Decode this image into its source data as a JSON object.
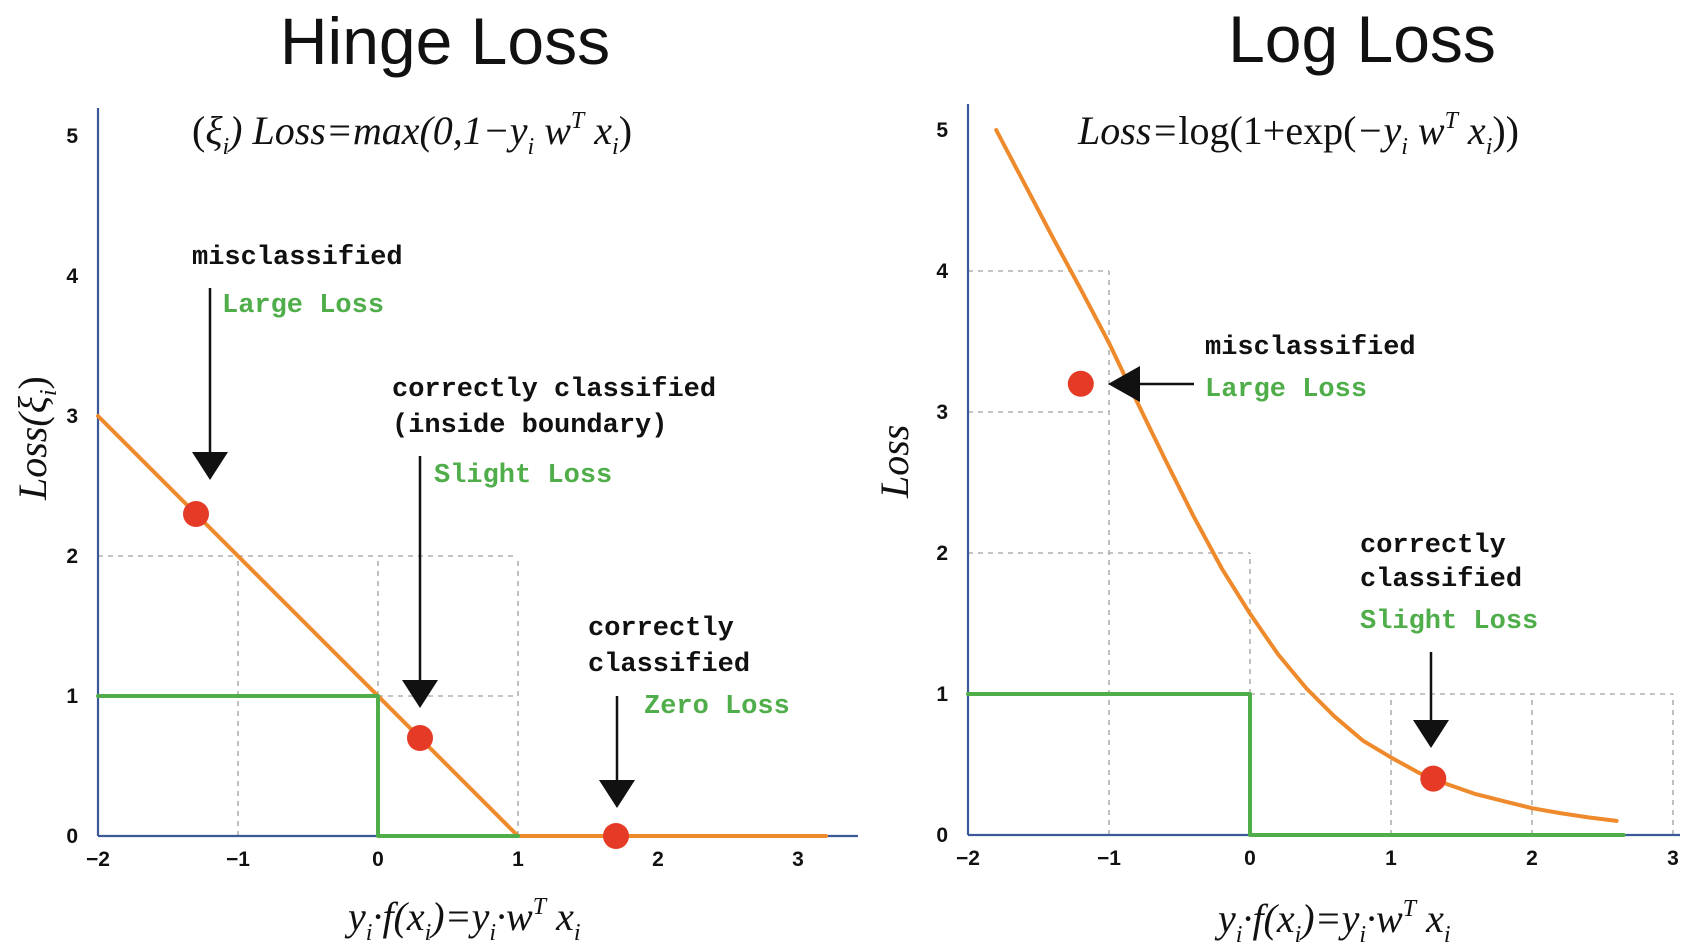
{
  "colors": {
    "loss_curve": "#ef8a2c",
    "zero_one": "#4fae4a",
    "axis": "#3b5998",
    "points": "#e53a26",
    "grid": "#b0b0b0",
    "annotation_green": "#4fae4a",
    "annotation_black": "#111111"
  },
  "chart_data": [
    {
      "type": "line",
      "title": "Hinge Loss",
      "formula": "(ξ_i) Loss=max(0,1−y_i w^T x_i)",
      "formula_parts": {
        "p1": "(",
        "p2": "ξ",
        "p3": "i",
        "p4": ") Loss=max(0,1−y",
        "p5": "i",
        "p6": " w",
        "p7": "T",
        "p8": " x",
        "p9": "i",
        "p10": ")"
      },
      "xlabel_parts": {
        "a": "y",
        "b": "i",
        "c": "·f(x",
        "d": "i",
        "e": ")=y",
        "f": "i",
        "g": "·w",
        "h": "T",
        "i": " x",
        "j": "i"
      },
      "ylabel_parts": {
        "a": "Loss(",
        "b": "ξ",
        "c": "i",
        "d": ")"
      },
      "xlim": [
        -2,
        3.2
      ],
      "ylim": [
        0,
        5
      ],
      "xticks": [
        -2,
        -1,
        0,
        1,
        2,
        3
      ],
      "xtick_labels": [
        "−2",
        "−1",
        "0",
        "1",
        "2",
        "3"
      ],
      "yticks": [
        0,
        1,
        2,
        3,
        4,
        5
      ],
      "ytick_labels": [
        "0",
        "1",
        "2",
        "3",
        "4",
        "5"
      ],
      "series": [
        {
          "x": [
            -2,
            1,
            3.2
          ],
          "y": [
            3,
            0,
            0
          ]
        },
        {
          "x": [
            -2,
            0,
            0,
            1
          ],
          "y": [
            1,
            1,
            0,
            0
          ]
        }
      ],
      "grid_guides": [
        {
          "x": [
            -2,
            1
          ],
          "y": [
            2,
            2
          ]
        },
        {
          "x": [
            -1,
            -1
          ],
          "y": [
            0,
            2
          ]
        },
        {
          "x": [
            0,
            0
          ],
          "y": [
            1,
            2
          ]
        },
        {
          "x": [
            1,
            1
          ],
          "y": [
            0,
            2
          ]
        },
        {
          "x": [
            0,
            1
          ],
          "y": [
            1,
            1
          ]
        }
      ],
      "points": [
        {
          "x": -1.3,
          "y": 2.3
        },
        {
          "x": 0.3,
          "y": 0.7
        },
        {
          "x": 1.7,
          "y": 0
        }
      ],
      "annotations": [
        {
          "lines": [
            "misclassified"
          ],
          "green": "Large Loss"
        },
        {
          "lines": [
            "correctly classified",
            "(inside boundary)"
          ],
          "green": "Slight Loss"
        },
        {
          "lines": [
            "correctly",
            "classified"
          ],
          "green": "Zero Loss"
        }
      ]
    },
    {
      "type": "line",
      "title": "Log Loss",
      "formula": "Loss=log(1+exp(−y_i w^T x_i))",
      "formula_parts": {
        "p1": "Loss=",
        "p2": "log(1+exp(",
        "p3": "−y",
        "p4": "i",
        "p5": " w",
        "p6": "T",
        "p7": " x",
        "p8": "i",
        "p9": "))"
      },
      "xlabel_parts": {
        "a": "y",
        "b": "i",
        "c": "·f(x",
        "d": "i",
        "e": ")=y",
        "f": "i",
        "g": "·w",
        "h": "T",
        "i": " x",
        "j": "i"
      },
      "ylabel": "Loss",
      "xlim": [
        -2,
        3.1
      ],
      "ylim": [
        0,
        5
      ],
      "xticks": [
        -2,
        -1,
        0,
        1,
        2,
        3
      ],
      "xtick_labels": [
        "−2",
        "−1",
        "0",
        "1",
        "2",
        "3"
      ],
      "yticks": [
        0,
        1,
        2,
        3,
        4,
        5
      ],
      "ytick_labels": [
        "0",
        "1",
        "2",
        "3",
        "4",
        "5"
      ],
      "series": [
        {
          "x": [
            -1.8,
            -1.6,
            -1.4,
            -1.2,
            -1.0,
            -0.8,
            -0.6,
            -0.4,
            -0.2,
            0.0,
            0.2,
            0.4,
            0.6,
            0.8,
            1.0,
            1.2,
            1.4,
            1.6,
            1.8,
            2.0,
            2.2,
            2.4,
            2.6
          ],
          "y": [
            5.0,
            4.62,
            4.24,
            3.87,
            3.49,
            3.07,
            2.66,
            2.26,
            1.89,
            1.57,
            1.28,
            1.04,
            0.84,
            0.67,
            0.55,
            0.44,
            0.36,
            0.29,
            0.24,
            0.19,
            0.155,
            0.125,
            0.1
          ]
        },
        {
          "x": [
            -2,
            0,
            0,
            2.65
          ],
          "y": [
            1,
            1,
            0,
            0
          ]
        }
      ],
      "grid_guides": [
        {
          "x": [
            -2,
            -1
          ],
          "y": [
            4,
            4
          ]
        },
        {
          "x": [
            -1,
            -1
          ],
          "y": [
            0,
            4
          ]
        },
        {
          "x": [
            -2,
            -1
          ],
          "y": [
            3,
            3
          ]
        },
        {
          "x": [
            -2,
            0
          ],
          "y": [
            2,
            2
          ]
        },
        {
          "x": [
            0,
            0
          ],
          "y": [
            1,
            2
          ]
        },
        {
          "x": [
            0,
            3
          ],
          "y": [
            1,
            1
          ]
        },
        {
          "x": [
            1,
            1
          ],
          "y": [
            0,
            1
          ]
        },
        {
          "x": [
            2,
            2
          ],
          "y": [
            0,
            1
          ]
        },
        {
          "x": [
            3,
            3
          ],
          "y": [
            0,
            1
          ]
        }
      ],
      "points": [
        {
          "x": -1.2,
          "y": 3.2
        },
        {
          "x": 1.3,
          "y": 0.4
        }
      ],
      "annotations": [
        {
          "lines": [
            "misclassified"
          ],
          "green": "Large Loss"
        },
        {
          "lines": [
            "correctly",
            "classified"
          ],
          "green": "Slight Loss"
        }
      ]
    }
  ]
}
